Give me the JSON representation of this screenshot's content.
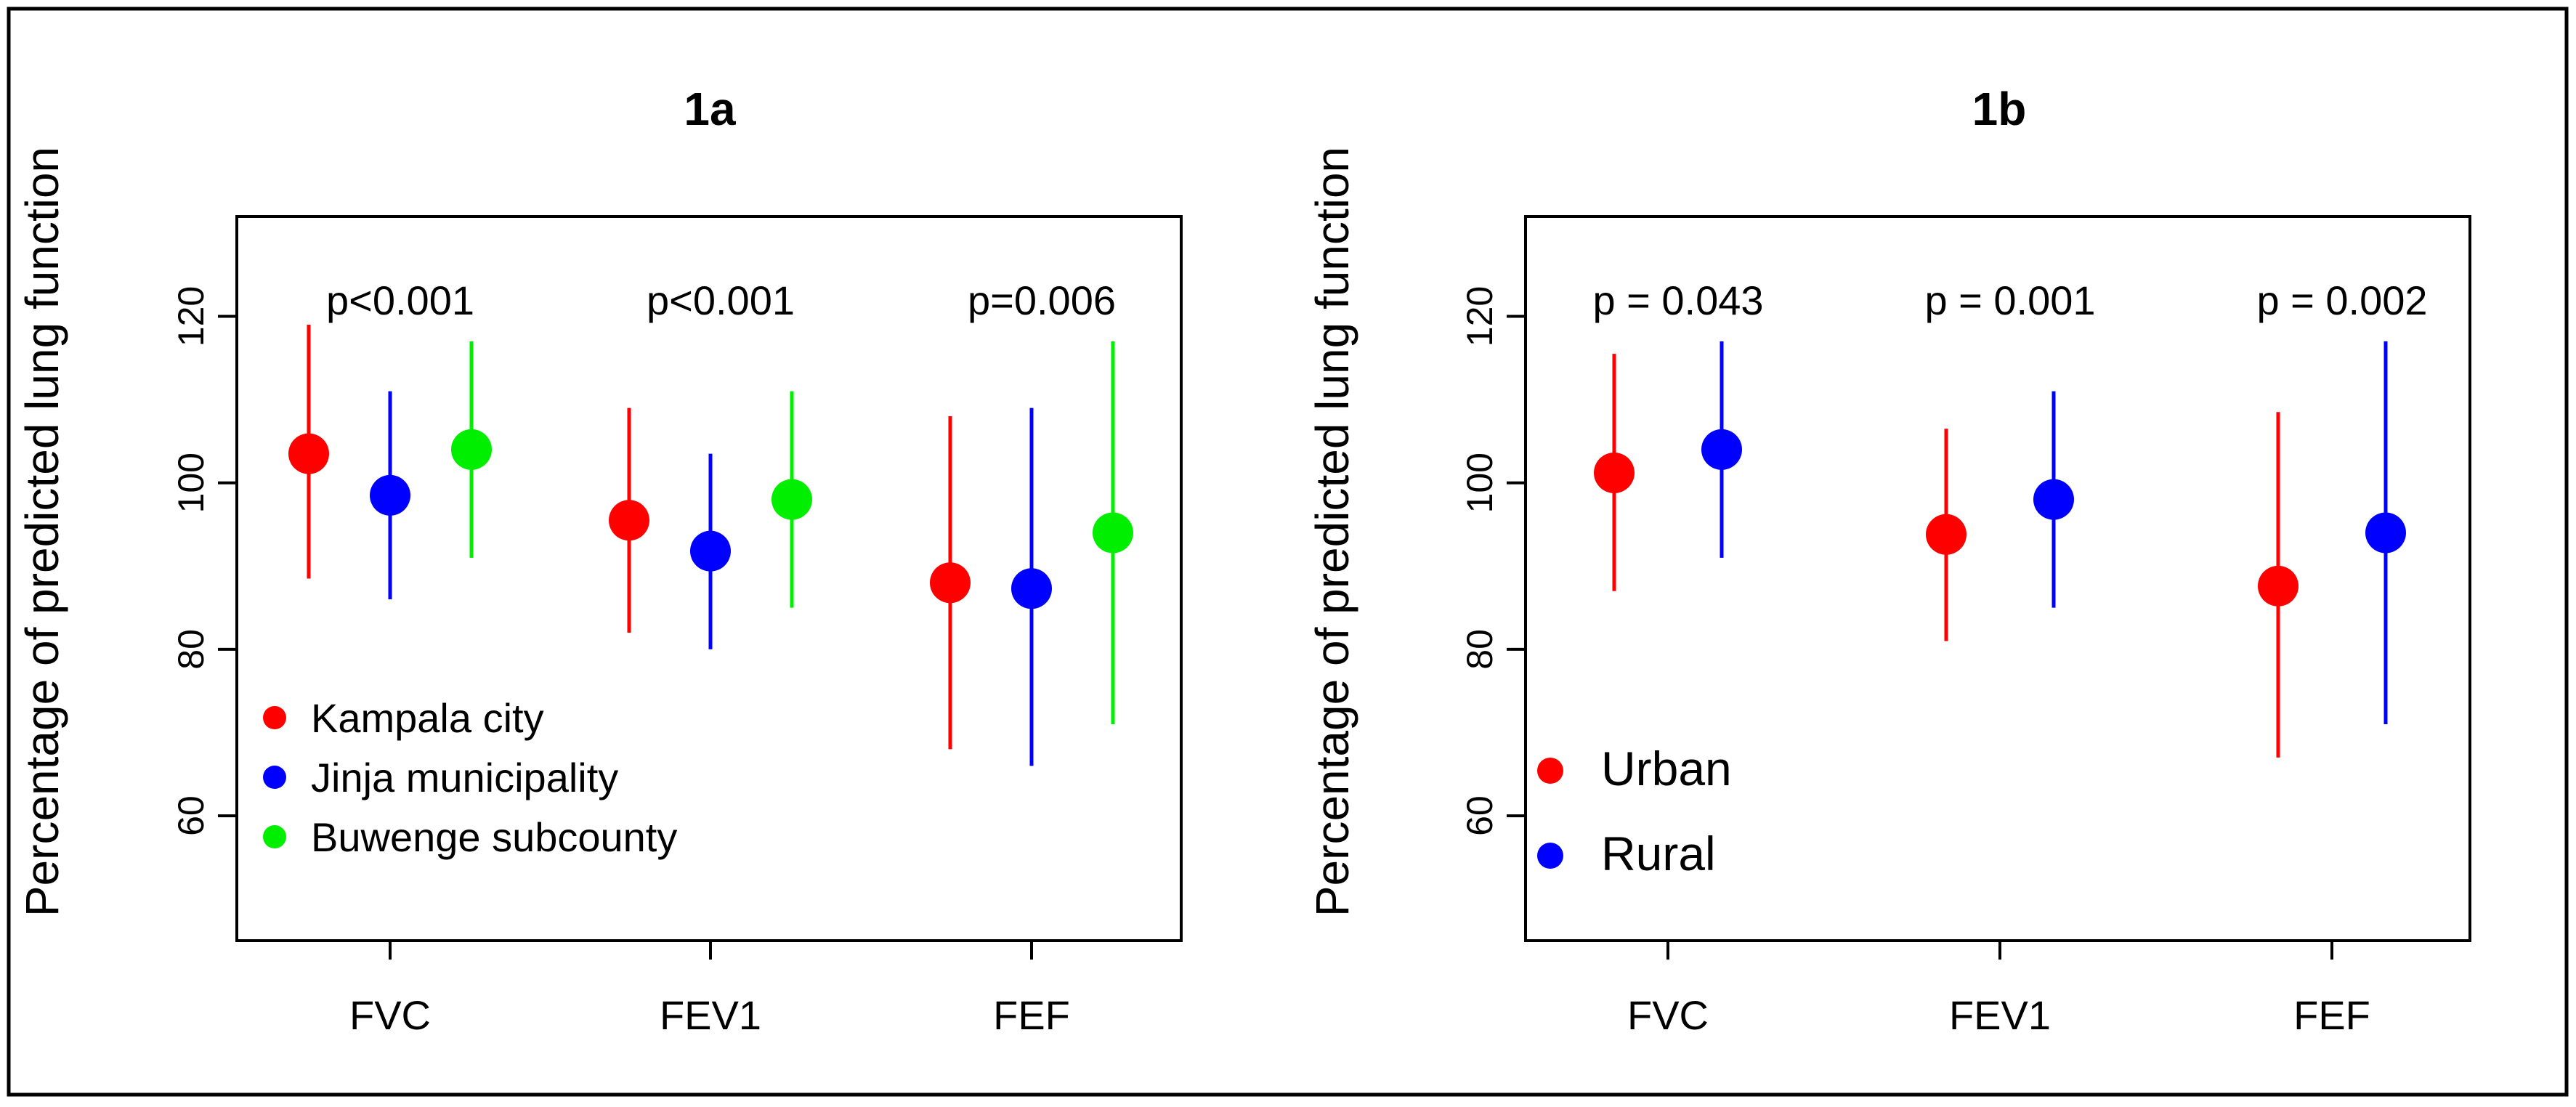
{
  "chart_data": [
    {
      "type": "scatter",
      "panel": "1a",
      "title": "1a",
      "xlabel": "",
      "ylabel": "Percentage of predicted lung function",
      "ylim": [
        45,
        132
      ],
      "yticks": [
        60,
        80,
        100,
        120
      ],
      "categories": [
        "FVC",
        "FEV1",
        "FEF"
      ],
      "pvalues": [
        "p<0.001",
        "p<0.001",
        "p=0.006"
      ],
      "legend_position": "bottom-left",
      "series": [
        {
          "name": "Kampala city",
          "color": "#ff0000",
          "values": [
            103.5,
            95.5,
            88
          ],
          "lower": [
            88.5,
            82,
            68
          ],
          "upper": [
            119,
            109,
            108
          ]
        },
        {
          "name": "Jinja municipality",
          "color": "#0000ff",
          "values": [
            98.5,
            91.8,
            87.3
          ],
          "lower": [
            86,
            80,
            66
          ],
          "upper": [
            111,
            103.5,
            109
          ]
        },
        {
          "name": "Buwenge subcounty",
          "color": "#00ee00",
          "values": [
            104,
            98,
            94
          ],
          "lower": [
            91,
            85,
            71
          ],
          "upper": [
            117,
            111,
            117
          ]
        }
      ]
    },
    {
      "type": "scatter",
      "panel": "1b",
      "title": "1b",
      "xlabel": "",
      "ylabel": "Percentage of predicted lung function",
      "ylim": [
        45,
        132
      ],
      "yticks": [
        60,
        80,
        100,
        120
      ],
      "categories": [
        "FVC",
        "FEV1",
        "FEF"
      ],
      "pvalues": [
        "p = 0.043",
        "p = 0.001",
        "p = 0.002"
      ],
      "legend_position": "bottom-left",
      "series": [
        {
          "name": "Urban",
          "color": "#ff0000",
          "values": [
            101.2,
            93.8,
            87.6
          ],
          "lower": [
            87,
            81,
            67
          ],
          "upper": [
            115.5,
            106.5,
            108.5
          ]
        },
        {
          "name": "Rural",
          "color": "#0000ff",
          "values": [
            104,
            98,
            94
          ],
          "lower": [
            91,
            85,
            71
          ],
          "upper": [
            117,
            111,
            117
          ]
        }
      ]
    }
  ]
}
